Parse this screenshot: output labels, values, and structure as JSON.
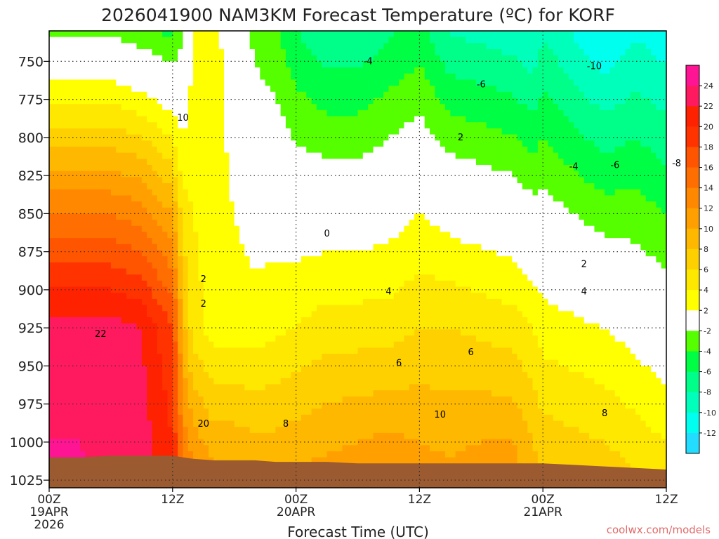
{
  "chart_data": {
    "type": "heatmap",
    "title": "2026041900 NAM3KM Forecast Temperature (ºC) for KORF",
    "xlabel": "Forecast Time (UTC)",
    "ylabel": "",
    "credit": "coolwx.com/models",
    "x_range_hours": [
      0,
      60
    ],
    "y_range_hpa": [
      730,
      1030
    ],
    "x_ticks": [
      {
        "hour": 0,
        "lines": [
          "00Z",
          "19APR",
          "2026"
        ]
      },
      {
        "hour": 12,
        "lines": [
          "12Z"
        ]
      },
      {
        "hour": 24,
        "lines": [
          "00Z",
          "20APR"
        ]
      },
      {
        "hour": 36,
        "lines": [
          "12Z"
        ]
      },
      {
        "hour": 48,
        "lines": [
          "00Z",
          "21APR"
        ]
      },
      {
        "hour": 60,
        "lines": [
          "12Z"
        ]
      }
    ],
    "y_ticks": [
      "750",
      "775",
      "800",
      "825",
      "850",
      "875",
      "900",
      "925",
      "950",
      "975",
      "1000",
      "1025"
    ],
    "y_tick_values": [
      750,
      775,
      800,
      825,
      850,
      875,
      900,
      925,
      950,
      975,
      1000,
      1025
    ],
    "colorbar": {
      "labels": [
        "24",
        "22",
        "20",
        "18",
        "16",
        "14",
        "12",
        "10",
        "8",
        "6",
        "4",
        "2",
        "-2",
        "-4",
        "-6",
        "-8",
        "-10",
        "-12"
      ],
      "colors": [
        "#ff1493",
        "#ff1a60",
        "#ff2200",
        "#ff3300",
        "#ff5500",
        "#ff6e00",
        "#ff8800",
        "#ffa000",
        "#ffb800",
        "#ffd000",
        "#ffe800",
        "#ffff00",
        "#ffffff",
        "#55ff00",
        "#00ff44",
        "#00ff88",
        "#00ffbb",
        "#00ffee",
        "#22ddff"
      ]
    },
    "contour_labels": [
      "-10",
      "-4",
      "-6",
      "-6",
      "-4",
      "-8",
      "2",
      "0",
      "2",
      "2",
      "2",
      "4",
      "4",
      "6",
      "6",
      "8",
      "8",
      "10",
      "10",
      "22",
      "20"
    ],
    "columns": [
      {
        "hour": 0,
        "surface_hpa": 1010,
        "t850": 14,
        "t925": 23,
        "t1000": 24
      },
      {
        "hour": 3,
        "surface_hpa": 1010,
        "t850": 14,
        "t925": 23,
        "t1000": 24
      },
      {
        "hour": 6,
        "surface_hpa": 1009,
        "t850": 14,
        "t925": 23,
        "t1000": 23
      },
      {
        "hour": 9,
        "surface_hpa": 1009,
        "t850": 13,
        "t925": 22,
        "t1000": 23
      },
      {
        "hour": 12,
        "surface_hpa": 1009,
        "t850": 10,
        "t925": 18,
        "t1000": 20
      },
      {
        "hour": 13,
        "surface_hpa": 1010,
        "t850": 5,
        "t925": 9,
        "t1000": 13
      },
      {
        "hour": 14,
        "surface_hpa": 1011,
        "t850": 4,
        "t925": 5,
        "t1000": 11
      },
      {
        "hour": 16,
        "surface_hpa": 1012,
        "t850": 3,
        "t925": 3,
        "t1000": 9
      },
      {
        "hour": 18,
        "surface_hpa": 1012,
        "t850": 2,
        "t925": 3,
        "t1000": 9
      },
      {
        "hour": 20,
        "surface_hpa": 1012,
        "t850": 1,
        "t925": 3,
        "t1000": 8.5
      },
      {
        "hour": 22,
        "surface_hpa": 1013,
        "t850": 1,
        "t925": 3.5,
        "t1000": 8.5
      },
      {
        "hour": 24,
        "surface_hpa": 1013,
        "t850": 0.5,
        "t925": 4,
        "t1000": 9
      },
      {
        "hour": 27,
        "surface_hpa": 1013,
        "t850": 0.5,
        "t925": 5,
        "t1000": 9.5
      },
      {
        "hour": 30,
        "surface_hpa": 1014,
        "t850": 0.5,
        "t925": 5,
        "t1000": 10
      },
      {
        "hour": 33,
        "surface_hpa": 1014,
        "t850": 1,
        "t925": 5,
        "t1000": 10.5
      },
      {
        "hour": 36,
        "surface_hpa": 1014,
        "t850": 2,
        "t925": 6,
        "t1000": 10
      },
      {
        "hour": 39,
        "surface_hpa": 1014,
        "t850": 1,
        "t925": 6,
        "t1000": 9.5
      },
      {
        "hour": 42,
        "surface_hpa": 1014,
        "t850": 0.5,
        "t925": 5.5,
        "t1000": 10
      },
      {
        "hour": 45,
        "surface_hpa": 1014,
        "t850": 0,
        "t925": 5,
        "t1000": 10
      },
      {
        "hour": 47,
        "surface_hpa": 1014,
        "t850": -1,
        "t925": 4,
        "t1000": 8
      },
      {
        "hour": 48,
        "surface_hpa": 1014,
        "t850": -1,
        "t925": 3,
        "t1000": 7
      },
      {
        "hour": 51,
        "surface_hpa": 1015,
        "t850": -2,
        "t925": 2.5,
        "t1000": 6.5
      },
      {
        "hour": 54,
        "surface_hpa": 1016,
        "t850": -3,
        "t925": 2,
        "t1000": 6
      },
      {
        "hour": 57,
        "surface_hpa": 1017,
        "t850": -3,
        "t925": 1,
        "t1000": 5
      },
      {
        "hour": 60,
        "surface_hpa": 1018,
        "t850": -4,
        "t925": 0,
        "t1000": 4
      }
    ]
  }
}
